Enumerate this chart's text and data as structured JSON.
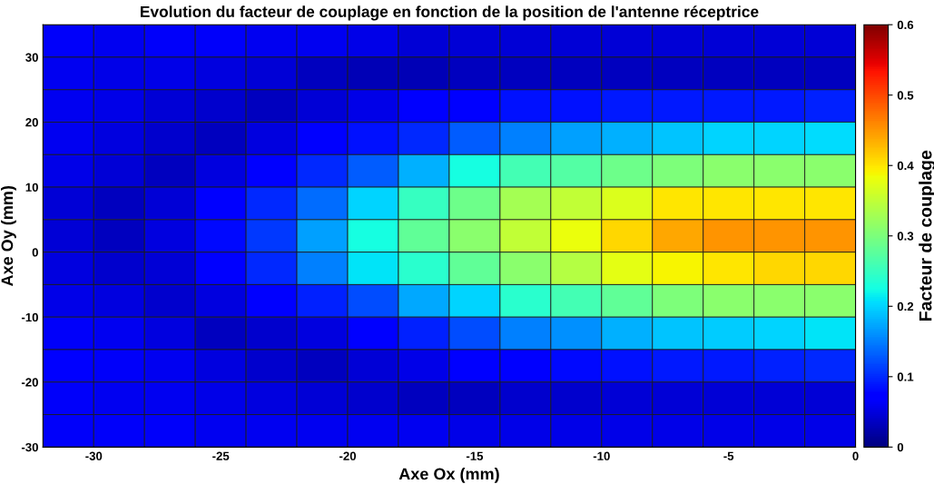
{
  "chart_data": {
    "type": "heatmap",
    "title": "Evolution du facteur de couplage en fonction de la position de l'antenne réceptrice",
    "xlabel": "Axe Ox (mm)",
    "ylabel": "Axe Oy (mm)",
    "clabel": "Facteur de couplage",
    "x": [
      -31,
      -29,
      -27,
      -25,
      -23,
      -21,
      -19,
      -17,
      -15,
      -13,
      -11,
      -9,
      -7,
      -5,
      -3,
      -1
    ],
    "y": [
      32.5,
      27.5,
      22.5,
      17.5,
      12.5,
      7.5,
      2.5,
      -2.5,
      -7.5,
      -12.5,
      -17.5,
      -22.5,
      -27.5
    ],
    "xlim": [
      -32,
      0
    ],
    "xticks": [
      -30,
      -25,
      -20,
      -15,
      -10,
      -5,
      0
    ],
    "ylim": [
      -30,
      35
    ],
    "yticks": [
      -30,
      -20,
      -10,
      0,
      10,
      20,
      30
    ],
    "clim": [
      0,
      0.6
    ],
    "cticks": [
      0,
      0.1,
      0.2,
      0.3,
      0.4,
      0.5,
      0.6
    ],
    "cells": [
      [
        0.065,
        0.06,
        0.065,
        0.065,
        0.06,
        0.06,
        0.055,
        0.045,
        0.045,
        0.045,
        0.045,
        0.045,
        0.045,
        0.045,
        0.045,
        0.045
      ],
      [
        0.06,
        0.055,
        0.055,
        0.05,
        0.045,
        0.035,
        0.03,
        0.03,
        0.035,
        0.035,
        0.035,
        0.035,
        0.035,
        0.035,
        0.035,
        0.035
      ],
      [
        0.06,
        0.055,
        0.045,
        0.04,
        0.035,
        0.045,
        0.055,
        0.07,
        0.075,
        0.085,
        0.085,
        0.09,
        0.09,
        0.09,
        0.09,
        0.095
      ],
      [
        0.06,
        0.05,
        0.04,
        0.035,
        0.05,
        0.07,
        0.085,
        0.1,
        0.13,
        0.15,
        0.17,
        0.18,
        0.19,
        0.2,
        0.2,
        0.205
      ],
      [
        0.055,
        0.045,
        0.035,
        0.05,
        0.075,
        0.1,
        0.13,
        0.18,
        0.225,
        0.26,
        0.27,
        0.29,
        0.3,
        0.31,
        0.31,
        0.31
      ],
      [
        0.045,
        0.035,
        0.045,
        0.07,
        0.1,
        0.14,
        0.2,
        0.25,
        0.29,
        0.33,
        0.35,
        0.37,
        0.4,
        0.4,
        0.4,
        0.4
      ],
      [
        0.045,
        0.035,
        0.05,
        0.08,
        0.11,
        0.17,
        0.225,
        0.28,
        0.31,
        0.35,
        0.38,
        0.41,
        0.44,
        0.45,
        0.45,
        0.45
      ],
      [
        0.05,
        0.04,
        0.045,
        0.07,
        0.1,
        0.15,
        0.21,
        0.24,
        0.28,
        0.31,
        0.34,
        0.375,
        0.39,
        0.4,
        0.41,
        0.41
      ],
      [
        0.055,
        0.05,
        0.04,
        0.05,
        0.07,
        0.095,
        0.12,
        0.175,
        0.2,
        0.24,
        0.26,
        0.28,
        0.3,
        0.31,
        0.31,
        0.31
      ],
      [
        0.065,
        0.06,
        0.05,
        0.035,
        0.04,
        0.05,
        0.07,
        0.095,
        0.12,
        0.15,
        0.16,
        0.18,
        0.19,
        0.195,
        0.2,
        0.21
      ],
      [
        0.07,
        0.065,
        0.06,
        0.05,
        0.04,
        0.035,
        0.045,
        0.055,
        0.07,
        0.075,
        0.08,
        0.085,
        0.09,
        0.09,
        0.095,
        0.1
      ],
      [
        0.065,
        0.06,
        0.06,
        0.055,
        0.05,
        0.045,
        0.04,
        0.035,
        0.035,
        0.04,
        0.04,
        0.045,
        0.045,
        0.045,
        0.045,
        0.045
      ],
      [
        0.065,
        0.065,
        0.065,
        0.06,
        0.06,
        0.06,
        0.06,
        0.06,
        0.055,
        0.055,
        0.055,
        0.055,
        0.055,
        0.055,
        0.055,
        0.055
      ]
    ]
  }
}
